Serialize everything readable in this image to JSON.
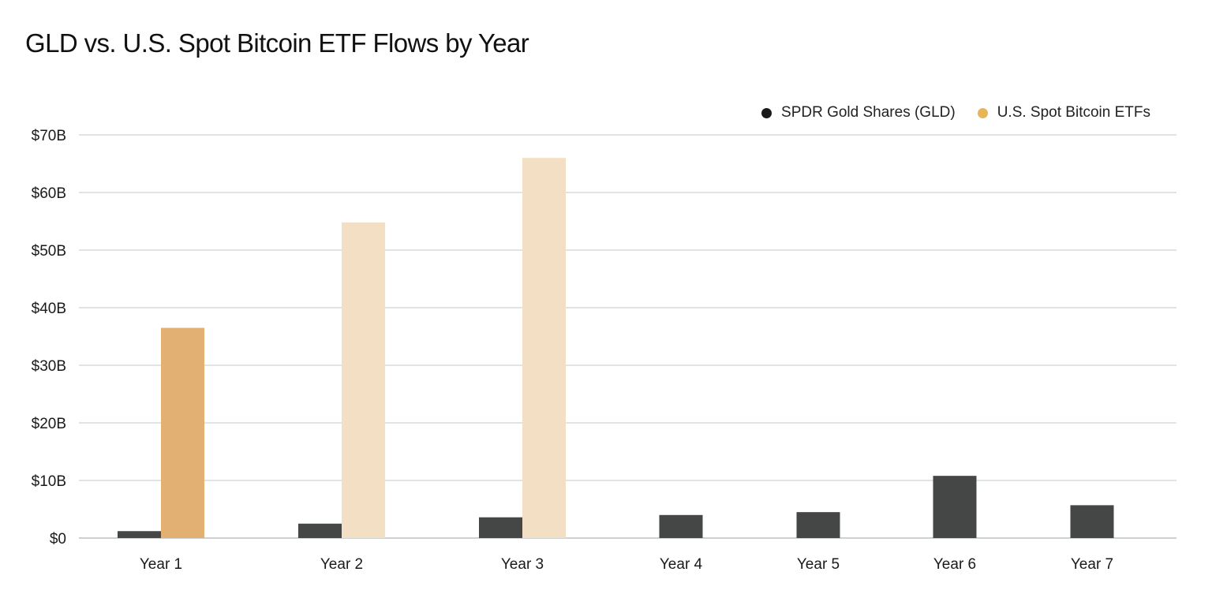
{
  "chart_data": {
    "type": "bar",
    "title": "GLD vs. U.S. Spot Bitcoin ETF Flows by Year",
    "xlabel": "",
    "ylabel": "",
    "categories": [
      "Year 1",
      "Year 2",
      "Year 3",
      "Year 4",
      "Year 5",
      "Year 6",
      "Year 7"
    ],
    "series": [
      {
        "name": "SPDR Gold Shares (GLD)",
        "color": "#454747",
        "values": [
          1.2,
          2.5,
          3.6,
          4.0,
          4.5,
          10.8,
          5.7
        ]
      },
      {
        "name": "U.S. Spot Bitcoin ETFs",
        "color": "#e3b074",
        "values": [
          36.5,
          54.8,
          66.0,
          null,
          null,
          null,
          null
        ],
        "bar_colors": [
          "#e3b074",
          "#f3dfc4",
          "#f3dfc4"
        ]
      }
    ],
    "ylim": [
      0,
      70
    ],
    "yticks": [
      "$0",
      "$10B",
      "$20B",
      "$30B",
      "$40B",
      "$50B",
      "$60B",
      "$70B"
    ],
    "ytick_values": [
      0,
      10,
      20,
      30,
      40,
      50,
      60,
      70
    ],
    "grid": true,
    "legend_position": "top-right",
    "legend_dot_colors": [
      "#1a1a1a",
      "#e8b45a"
    ]
  }
}
